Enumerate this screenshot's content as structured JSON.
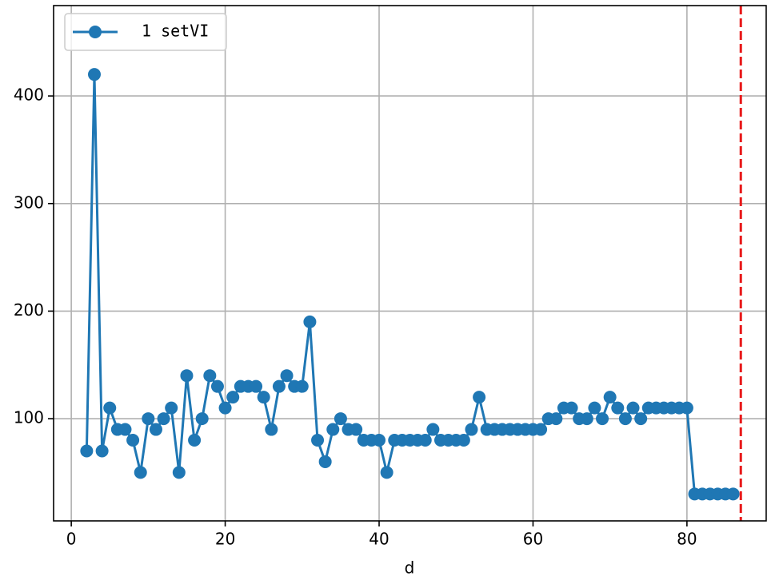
{
  "chart_data": {
    "type": "line",
    "xlabel": "d",
    "x": [
      2,
      3,
      4,
      5,
      6,
      7,
      8,
      9,
      10,
      11,
      12,
      13,
      14,
      15,
      16,
      17,
      18,
      19,
      20,
      21,
      22,
      23,
      24,
      25,
      26,
      27,
      28,
      29,
      30,
      31,
      32,
      33,
      34,
      35,
      36,
      37,
      38,
      39,
      40,
      41,
      42,
      43,
      44,
      45,
      46,
      47,
      48,
      49,
      50,
      51,
      52,
      53,
      54,
      55,
      56,
      57,
      58,
      59,
      60,
      61,
      62,
      63,
      64,
      65,
      66,
      67,
      68,
      69,
      70,
      71,
      72,
      73,
      74,
      75,
      76,
      77,
      78,
      79,
      80,
      81,
      82,
      83,
      84,
      85,
      86
    ],
    "series": [
      {
        "name": "1 setVI",
        "color": "#1f77b4",
        "values": [
          70,
          420,
          70,
          110,
          90,
          90,
          80,
          50,
          100,
          90,
          100,
          110,
          50,
          140,
          80,
          100,
          140,
          130,
          110,
          120,
          130,
          130,
          130,
          120,
          90,
          130,
          140,
          130,
          130,
          190,
          80,
          60,
          90,
          100,
          90,
          90,
          80,
          80,
          80,
          50,
          80,
          80,
          80,
          80,
          80,
          90,
          80,
          80,
          80,
          80,
          90,
          120,
          90,
          90,
          90,
          90,
          90,
          90,
          90,
          90,
          100,
          100,
          110,
          110,
          100,
          100,
          110,
          100,
          120,
          110,
          100,
          110,
          100,
          110,
          110,
          110,
          110,
          110,
          110,
          30,
          30,
          30,
          30,
          30,
          30
        ]
      }
    ],
    "vline": {
      "x": 87,
      "color": "#e8191a"
    },
    "xlim": [
      -2.3,
      90.3
    ],
    "xticks": [
      0,
      20,
      40,
      60,
      80
    ],
    "ylim": [
      5,
      484
    ],
    "yticks": [
      100,
      200,
      300,
      400
    ],
    "grid": true,
    "legend": "upper left"
  }
}
